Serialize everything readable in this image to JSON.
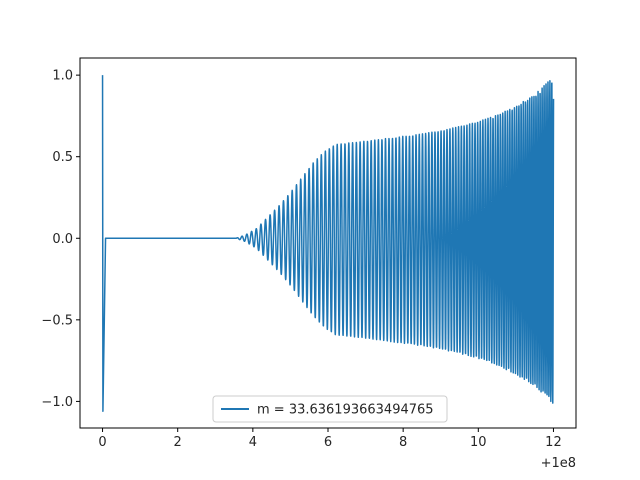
{
  "chart_data": {
    "type": "line",
    "title": "",
    "xlabel": "",
    "ylabel": "",
    "x_offset_label": "+1e8",
    "xlim": [
      -0.6,
      12.6
    ],
    "ylim": [
      -1.163,
      1.105
    ],
    "x_ticks": [
      {
        "value": 0,
        "label": "0"
      },
      {
        "value": 2,
        "label": "2"
      },
      {
        "value": 4,
        "label": "4"
      },
      {
        "value": 6,
        "label": "6"
      },
      {
        "value": 8,
        "label": "8"
      },
      {
        "value": 10,
        "label": "10"
      },
      {
        "value": 12,
        "label": "12"
      }
    ],
    "y_ticks": [
      {
        "value": -1.0,
        "label": "−1.0"
      },
      {
        "value": -0.5,
        "label": "−0.5"
      },
      {
        "value": 0.0,
        "label": "0.0"
      },
      {
        "value": 0.5,
        "label": "0.5"
      },
      {
        "value": 1.0,
        "label": "1.0"
      }
    ],
    "legend_location": "lower center",
    "grid": false,
    "series": [
      {
        "name": "m = 33.636193663494765",
        "color": "#1f77b4",
        "envelope": [
          [
            3.55,
            0.0
          ],
          [
            3.8,
            0.02
          ],
          [
            4.1,
            0.06
          ],
          [
            4.4,
            0.13
          ],
          [
            4.7,
            0.2
          ],
          [
            5.0,
            0.28
          ],
          [
            5.3,
            0.37
          ],
          [
            5.6,
            0.46
          ],
          [
            5.9,
            0.53
          ],
          [
            6.2,
            0.575
          ],
          [
            6.6,
            0.585
          ],
          [
            7.0,
            0.595
          ],
          [
            7.5,
            0.61
          ],
          [
            8.0,
            0.625
          ],
          [
            8.5,
            0.64
          ],
          [
            9.0,
            0.66
          ],
          [
            9.5,
            0.685
          ],
          [
            10.0,
            0.715
          ],
          [
            10.5,
            0.755
          ],
          [
            11.0,
            0.81
          ],
          [
            11.5,
            0.88
          ],
          [
            12.0,
            0.99
          ]
        ],
        "lower_scale": 1.03,
        "oscillation_periods": [
          [
            3.55,
            0.13
          ],
          [
            5.5,
            0.11
          ],
          [
            8.0,
            0.09
          ],
          [
            10.0,
            0.07
          ],
          [
            12.0,
            0.05
          ]
        ],
        "initial_transient": {
          "x_start": 0.0,
          "x_end": 0.08,
          "y_start": 1.0,
          "y_min": -1.06
        }
      }
    ]
  }
}
